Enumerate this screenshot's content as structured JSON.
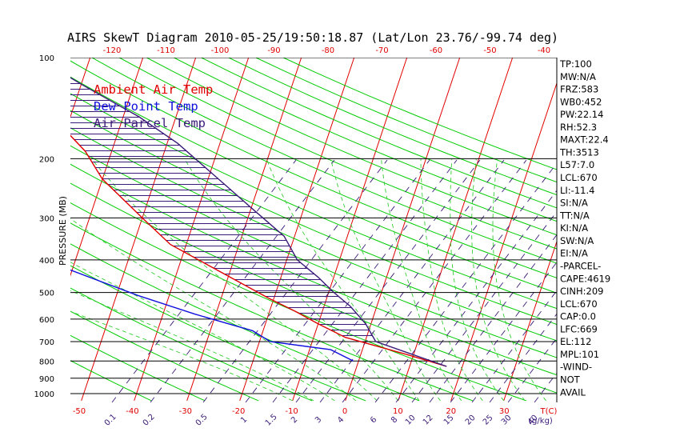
{
  "chart_data": {
    "type": "skewt",
    "title": "AIRS SkewT Diagram 2010-05-25/19:50:18.87 (Lat/Lon 23.76/-99.74 deg)",
    "ylabel": "PRESSURE (MB)",
    "pressure_levels": [
      100,
      200,
      300,
      400,
      500,
      600,
      700,
      800,
      900,
      1000
    ],
    "y_scale": "log-pressure",
    "top_temp_ticks": [
      -120,
      -110,
      -100,
      -90,
      -80,
      -70,
      -60,
      -50,
      -40
    ],
    "bottom_temp_ticks": [
      -50,
      -40,
      -30,
      -20,
      -10,
      0,
      10,
      20,
      30
    ],
    "bottom_temp_unit": "T(C)",
    "mixing_ratio_ticks": [
      "0.1",
      "0.2",
      "0.5",
      "1",
      "1.5",
      "2",
      "3",
      "4",
      "6",
      "8",
      "10",
      "12",
      "15",
      "20",
      "25",
      "30",
      "40"
    ],
    "mixing_ratio_unit": "(g/kg)",
    "legend": [
      {
        "label": "Ambient Air Temp",
        "color": "#e00000"
      },
      {
        "label": "Dew Point Temp",
        "color": "#1010dd"
      },
      {
        "label": "Air Parcel Temp",
        "color": "#3a1a78"
      }
    ],
    "series": [
      {
        "name": "Ambient Air Temp",
        "color": "#e00000",
        "p": [
          100,
          110,
          135,
          165,
          190,
          230,
          300,
          360,
          440,
          520,
          570,
          620,
          680,
          760,
          830
        ],
        "t": [
          -80,
          -78,
          -75,
          -70,
          -65,
          -60,
          -50,
          -43,
          -31,
          -21,
          -15,
          -10,
          -4,
          8,
          17
        ]
      },
      {
        "name": "Dew Point Temp",
        "color": "#1010dd",
        "p": [
          100,
          130,
          200,
          255,
          290,
          350,
          420,
          510,
          580,
          650,
          700,
          740,
          800
        ],
        "t": [
          -88,
          -90,
          -96,
          -98,
          -88,
          -76,
          -62,
          -46,
          -34,
          -22,
          -18,
          -6,
          -1
        ]
      },
      {
        "name": "Air Parcel Temp",
        "color": "#3a1a78",
        "p": [
          100,
          120,
          150,
          180,
          230,
          280,
          340,
          400,
          450,
          500,
          550,
          620,
          700,
          830
        ],
        "t": [
          -80,
          -70,
          -57,
          -48,
          -38,
          -30,
          -22,
          -18,
          -13,
          -9,
          -5,
          -1,
          2,
          17
        ]
      }
    ],
    "indices": [
      "TP:100",
      "MW:N/A",
      "FRZ:583",
      "WB0:452",
      "PW:22.14",
      "RH:52.3",
      "MAXT:22.4",
      "TH:3513",
      "L57:7.0",
      "LCL:670",
      "LI:-11.4",
      "SI:N/A",
      "TT:N/A",
      "KI:N/A",
      "SW:N/A",
      "EI:N/A",
      "-PARCEL-",
      "CAPE:4619",
      "CINH:209",
      "LCL:670",
      "CAP:0.0",
      "LFC:669",
      "EL:112",
      "MPL:101",
      "-WIND-",
      "NOT",
      "AVAIL"
    ],
    "grid": true
  },
  "colors": {
    "isotherm": "#e00000",
    "dry_adiabat": "#00cc00",
    "moist_adiabat": "#33cc33",
    "mixing_ratio": "#3a1a78",
    "pressure_line": "#000000",
    "top_tick": "#e00000",
    "bottom_tick": "#e00000",
    "mixing_tick": "#3a1a78"
  }
}
